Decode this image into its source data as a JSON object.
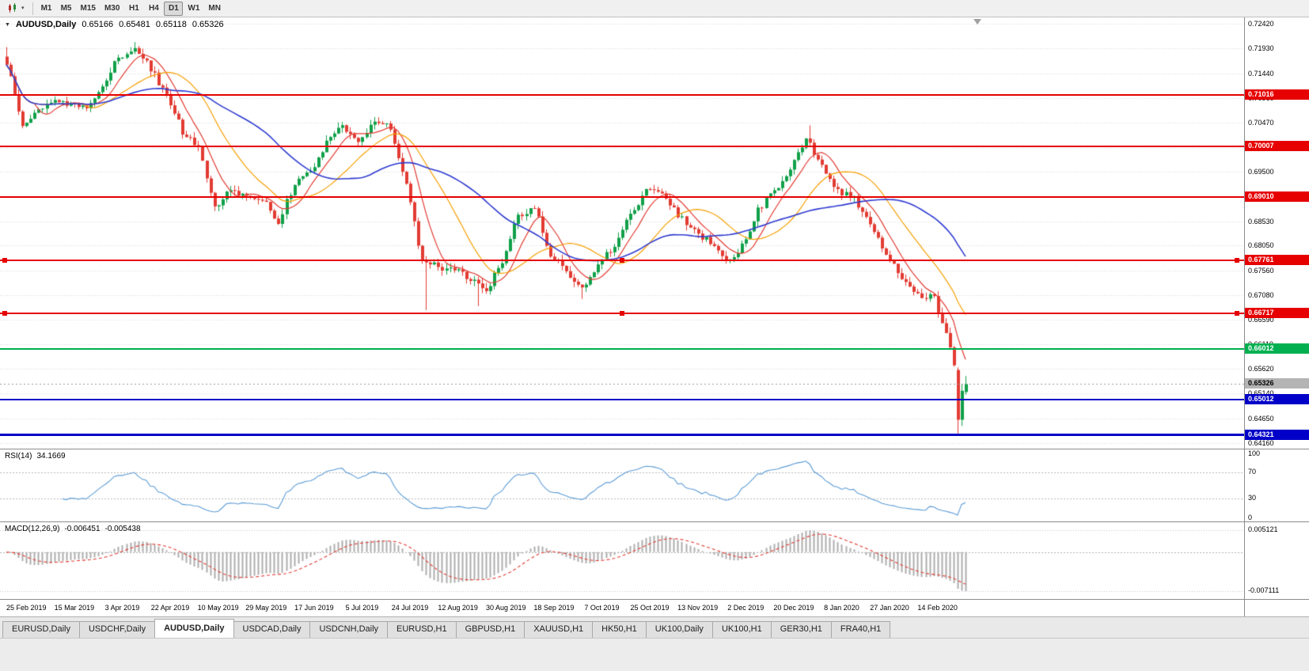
{
  "toolbar": {
    "timeframes": [
      "M1",
      "M5",
      "M15",
      "M30",
      "H1",
      "H4",
      "D1",
      "W1",
      "MN"
    ],
    "active_timeframe": "D1"
  },
  "chart": {
    "symbol_label": "AUDUSD,Daily",
    "ohlc": {
      "open": "0.65166",
      "high": "0.65481",
      "low": "0.65118",
      "close": "0.65326"
    },
    "colors": {
      "up": "#10A049",
      "down": "#E23B32",
      "ma_fast": "#E23B32",
      "ma_mid": "#F59F00",
      "ma_slow": "#2F3BD0",
      "grid": "#D6D6D6",
      "rsi_line": "#5B9BD5",
      "macd_hist": "#ADADAD",
      "macd_signal": "#E23B32",
      "current_price_line": "#999999"
    }
  },
  "chart_data": {
    "type": "candlestick",
    "symbol": "AUDUSD",
    "timeframe": "Daily",
    "y_axis": {
      "min": 0.64051,
      "max": 0.72545,
      "ticks": [
        "0.72420",
        "0.71930",
        "0.71440",
        "0.70960",
        "0.70470",
        "0.69980",
        "0.69500",
        "0.69010",
        "0.68530",
        "0.68050",
        "0.67560",
        "0.67080",
        "0.66590",
        "0.66110",
        "0.65620",
        "0.65140",
        "0.64650",
        "0.64160"
      ]
    },
    "x_labels": [
      "25 Feb 2019",
      "15 Mar 2019",
      "3 Apr 2019",
      "22 Apr 2019",
      "10 May 2019",
      "29 May 2019",
      "17 Jun 2019",
      "5 Jul 2019",
      "24 Jul 2019",
      "12 Aug 2019",
      "30 Aug 2019",
      "18 Sep 2019",
      "7 Oct 2019",
      "25 Oct 2019",
      "13 Nov 2019",
      "2 Dec 2019",
      "20 Dec 2019",
      "8 Jan 2020",
      "27 Jan 2020",
      "14 Feb 2020"
    ],
    "anchors": [
      0.7165,
      0.704,
      0.7075,
      0.7094,
      0.708,
      0.7075,
      0.7116,
      0.7178,
      0.7193,
      0.7154,
      0.71,
      0.703,
      0.6998,
      0.6881,
      0.6913,
      0.6905,
      0.6897,
      0.6852,
      0.693,
      0.6948,
      0.701,
      0.7042,
      0.7012,
      0.7048,
      0.7037,
      0.6928,
      0.6772,
      0.6764,
      0.6756,
      0.6741,
      0.6718,
      0.6772,
      0.6866,
      0.688,
      0.6788,
      0.6756,
      0.6717,
      0.6772,
      0.6803,
      0.6866,
      0.6913,
      0.6905,
      0.6866,
      0.6835,
      0.6811,
      0.6772,
      0.6803,
      0.6874,
      0.6913,
      0.6959,
      0.7018,
      0.6959,
      0.6913,
      0.6897,
      0.685,
      0.6788,
      0.6741,
      0.671,
      0.6702,
      0.6609,
      0.6476
    ],
    "candles_per_segment": 4,
    "final_candles": [
      [
        0.656,
        0.6565,
        0.6434,
        0.6462
      ],
      [
        0.6462,
        0.6533,
        0.645,
        0.6519
      ],
      [
        0.65166,
        0.65481,
        0.65118,
        0.65326
      ]
    ],
    "wick_spikes": [
      {
        "i": 0,
        "h": 0.7196
      },
      {
        "i": 32,
        "h": 0.7206
      },
      {
        "i": 69,
        "l": 0.6845
      },
      {
        "i": 105,
        "l": 0.6678
      },
      {
        "i": 118,
        "l": 0.6686
      },
      {
        "i": 144,
        "l": 0.67
      },
      {
        "i": 201,
        "h": 0.7042
      }
    ],
    "moving_averages": [
      {
        "period": 8
      },
      {
        "period": 20
      },
      {
        "period": 40
      }
    ],
    "h_lines": [
      {
        "price": 0.71016,
        "label": "0.71016",
        "color": "#E60000",
        "width": 2,
        "selected": false
      },
      {
        "price": 0.70007,
        "label": "0.70007",
        "color": "#E60000",
        "width": 2,
        "selected": false
      },
      {
        "price": 0.6901,
        "label": "0.69010",
        "color": "#E60000",
        "width": 2,
        "selected": false
      },
      {
        "price": 0.67761,
        "label": "0.67761",
        "color": "#E60000",
        "width": 2,
        "selected": true
      },
      {
        "price": 0.66717,
        "label": "0.66717",
        "color": "#E60000",
        "width": 2,
        "selected": true
      },
      {
        "price": 0.66012,
        "label": "0.66012",
        "color": "#00B050",
        "width": 2,
        "selected": false
      },
      {
        "price": 0.65012,
        "label": "0.65012",
        "color": "#0000C8",
        "width": 2,
        "selected": false
      },
      {
        "price": 0.64321,
        "label": "0.64321",
        "color": "#0000C8",
        "width": 3,
        "selected": false
      }
    ],
    "current_price": 0.65326
  },
  "rsi": {
    "label": "RSI(14)",
    "value": "34.1669",
    "period": 14,
    "levels": [
      70,
      30
    ],
    "scale": [
      {
        "v": 100,
        "label": "100"
      },
      {
        "v": 70,
        "label": "70"
      },
      {
        "v": 30,
        "label": "30"
      },
      {
        "v": 0,
        "label": "0"
      }
    ]
  },
  "macd": {
    "label": "MACD(12,26,9)",
    "value_macd": "-0.006451",
    "value_signal": "-0.005438",
    "fast": 12,
    "slow": 26,
    "signal": 9,
    "scale_top": "0.005121",
    "scale_bottom": "-0.007111"
  },
  "tabs": {
    "items": [
      "EURUSD,Daily",
      "USDCHF,Daily",
      "AUDUSD,Daily",
      "USDCAD,Daily",
      "USDCNH,Daily",
      "EURUSD,H1",
      "GBPUSD,H1",
      "XAUUSD,H1",
      "HK50,H1",
      "UK100,Daily",
      "UK100,H1",
      "GER30,H1",
      "FRA40,H1"
    ],
    "active": "AUDUSD,Daily"
  }
}
